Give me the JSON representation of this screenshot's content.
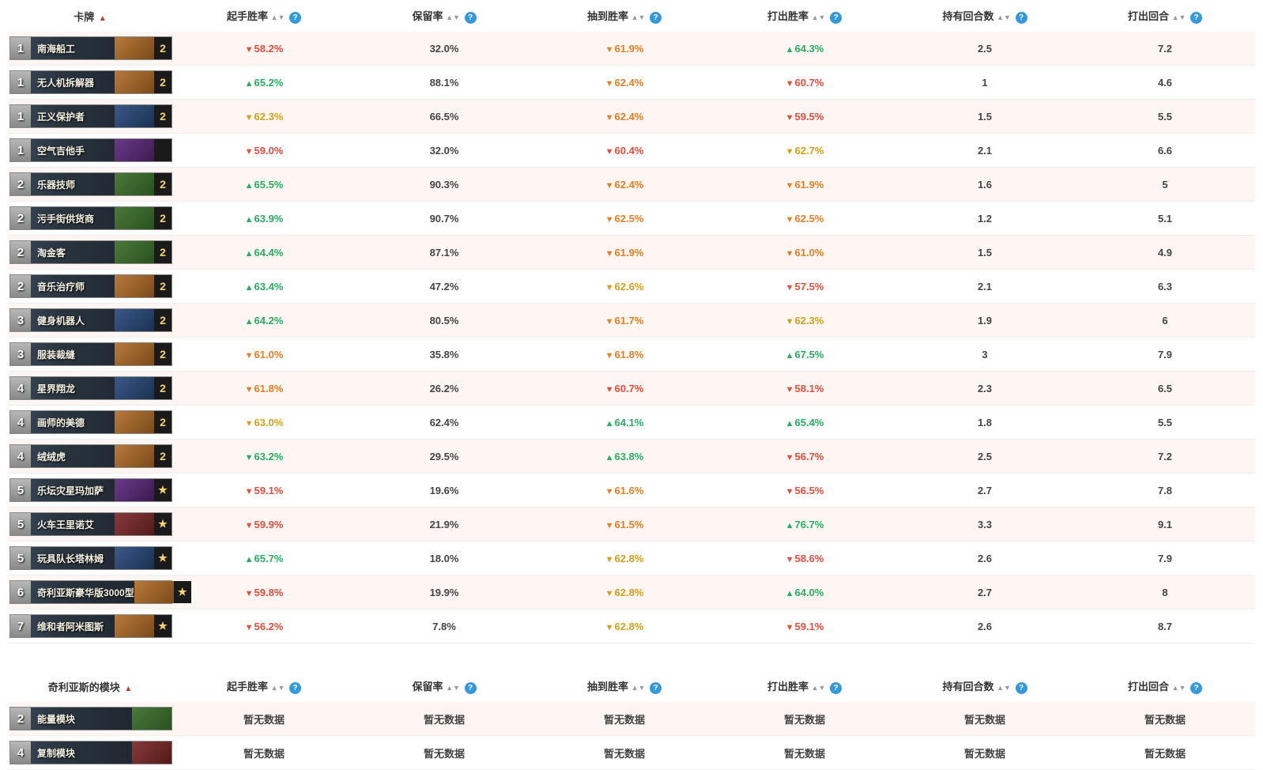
{
  "colors": {
    "red": "#e74c3c",
    "orange": "#e67e22",
    "yellow": "#d4a017",
    "green": "#27ae60",
    "plain": "#444444",
    "helpBg": "#3498db",
    "rowOdd": "#fdf6f3"
  },
  "mainTable": {
    "headers": {
      "card": "卡牌",
      "mulliganWR": "起手胜率",
      "keep": "保留率",
      "drawnWR": "抽到胜率",
      "playedWR": "打出胜率",
      "turnsHeld": "持有回合数",
      "turnPlayed": "打出回合"
    },
    "rows": [
      {
        "mana": "1",
        "name": "南海船工",
        "art": "orange",
        "count": "2",
        "ctype": "num",
        "mulligan": {
          "a": "▼",
          "v": "58.2%",
          "c": "red"
        },
        "keep": {
          "v": "32.0%",
          "c": "plain"
        },
        "drawn": {
          "a": "▼",
          "v": "61.9%",
          "c": "orange"
        },
        "played": {
          "a": "▲",
          "v": "64.3%",
          "c": "green"
        },
        "held": "2.5",
        "turn": "7.2"
      },
      {
        "mana": "1",
        "name": "无人机拆解器",
        "art": "orange",
        "count": "2",
        "ctype": "num",
        "mulligan": {
          "a": "▲",
          "v": "65.2%",
          "c": "green"
        },
        "keep": {
          "v": "88.1%",
          "c": "plain"
        },
        "drawn": {
          "a": "▼",
          "v": "62.4%",
          "c": "orange"
        },
        "played": {
          "a": "▼",
          "v": "60.7%",
          "c": "red"
        },
        "held": "1",
        "turn": "4.6"
      },
      {
        "mana": "1",
        "name": "正义保护者",
        "art": "blue",
        "count": "2",
        "ctype": "num",
        "mulligan": {
          "a": "▼",
          "v": "62.3%",
          "c": "yellow"
        },
        "keep": {
          "v": "66.5%",
          "c": "plain"
        },
        "drawn": {
          "a": "▼",
          "v": "62.4%",
          "c": "orange"
        },
        "played": {
          "a": "▼",
          "v": "59.5%",
          "c": "red"
        },
        "held": "1.5",
        "turn": "5.5"
      },
      {
        "mana": "1",
        "name": "空气吉他手",
        "art": "purple",
        "count": "",
        "ctype": "none",
        "mulligan": {
          "a": "▼",
          "v": "59.0%",
          "c": "red"
        },
        "keep": {
          "v": "32.0%",
          "c": "plain"
        },
        "drawn": {
          "a": "▼",
          "v": "60.4%",
          "c": "red"
        },
        "played": {
          "a": "▼",
          "v": "62.7%",
          "c": "yellow"
        },
        "held": "2.1",
        "turn": "6.6"
      },
      {
        "mana": "2",
        "name": "乐器技师",
        "art": "green",
        "count": "2",
        "ctype": "num",
        "mulligan": {
          "a": "▲",
          "v": "65.5%",
          "c": "green"
        },
        "keep": {
          "v": "90.3%",
          "c": "plain"
        },
        "drawn": {
          "a": "▼",
          "v": "62.4%",
          "c": "orange"
        },
        "played": {
          "a": "▼",
          "v": "61.9%",
          "c": "orange"
        },
        "held": "1.6",
        "turn": "5"
      },
      {
        "mana": "2",
        "name": "污手街供货商",
        "art": "green",
        "count": "2",
        "ctype": "num",
        "mulligan": {
          "a": "▲",
          "v": "63.9%",
          "c": "green"
        },
        "keep": {
          "v": "90.7%",
          "c": "plain"
        },
        "drawn": {
          "a": "▼",
          "v": "62.5%",
          "c": "orange"
        },
        "played": {
          "a": "▼",
          "v": "62.5%",
          "c": "orange"
        },
        "held": "1.2",
        "turn": "5.1"
      },
      {
        "mana": "2",
        "name": "淘金客",
        "art": "green",
        "count": "2",
        "ctype": "num",
        "mulligan": {
          "a": "▲",
          "v": "64.4%",
          "c": "green"
        },
        "keep": {
          "v": "87.1%",
          "c": "plain"
        },
        "drawn": {
          "a": "▼",
          "v": "61.9%",
          "c": "orange"
        },
        "played": {
          "a": "▼",
          "v": "61.0%",
          "c": "orange"
        },
        "held": "1.5",
        "turn": "4.9"
      },
      {
        "mana": "2",
        "name": "音乐治疗师",
        "art": "orange",
        "count": "2",
        "ctype": "num",
        "mulligan": {
          "a": "▲",
          "v": "63.4%",
          "c": "green"
        },
        "keep": {
          "v": "47.2%",
          "c": "plain"
        },
        "drawn": {
          "a": "▼",
          "v": "62.6%",
          "c": "yellow"
        },
        "played": {
          "a": "▼",
          "v": "57.5%",
          "c": "red"
        },
        "held": "2.1",
        "turn": "6.3"
      },
      {
        "mana": "3",
        "name": "健身机器人",
        "art": "blue",
        "count": "2",
        "ctype": "num",
        "mulligan": {
          "a": "▲",
          "v": "64.2%",
          "c": "green"
        },
        "keep": {
          "v": "80.5%",
          "c": "plain"
        },
        "drawn": {
          "a": "▼",
          "v": "61.7%",
          "c": "orange"
        },
        "played": {
          "a": "▼",
          "v": "62.3%",
          "c": "yellow"
        },
        "held": "1.9",
        "turn": "6"
      },
      {
        "mana": "3",
        "name": "服装裁缝",
        "art": "orange",
        "count": "2",
        "ctype": "num",
        "mulligan": {
          "a": "▼",
          "v": "61.0%",
          "c": "orange"
        },
        "keep": {
          "v": "35.8%",
          "c": "plain"
        },
        "drawn": {
          "a": "▼",
          "v": "61.8%",
          "c": "orange"
        },
        "played": {
          "a": "▲",
          "v": "67.5%",
          "c": "green"
        },
        "held": "3",
        "turn": "7.9"
      },
      {
        "mana": "4",
        "name": "星界翔龙",
        "art": "blue",
        "count": "2",
        "ctype": "num",
        "mulligan": {
          "a": "▼",
          "v": "61.8%",
          "c": "orange"
        },
        "keep": {
          "v": "26.2%",
          "c": "plain"
        },
        "drawn": {
          "a": "▼",
          "v": "60.7%",
          "c": "red"
        },
        "played": {
          "a": "▼",
          "v": "58.1%",
          "c": "red"
        },
        "held": "2.3",
        "turn": "6.5"
      },
      {
        "mana": "4",
        "name": "画师的美德",
        "art": "orange",
        "count": "2",
        "ctype": "num",
        "mulligan": {
          "a": "▼",
          "v": "63.0%",
          "c": "yellow"
        },
        "keep": {
          "v": "62.4%",
          "c": "plain"
        },
        "drawn": {
          "a": "▲",
          "v": "64.1%",
          "c": "green"
        },
        "played": {
          "a": "▲",
          "v": "65.4%",
          "c": "green"
        },
        "held": "1.8",
        "turn": "5.5"
      },
      {
        "mana": "4",
        "name": "绒绒虎",
        "art": "orange",
        "count": "2",
        "ctype": "num",
        "mulligan": {
          "a": "▼",
          "v": "63.2%",
          "c": "green"
        },
        "keep": {
          "v": "29.5%",
          "c": "plain"
        },
        "drawn": {
          "a": "▲",
          "v": "63.8%",
          "c": "green"
        },
        "played": {
          "a": "▼",
          "v": "56.7%",
          "c": "red"
        },
        "held": "2.5",
        "turn": "7.2"
      },
      {
        "mana": "5",
        "name": "乐坛灾星玛加萨",
        "art": "purple",
        "count": "★",
        "ctype": "star",
        "mulligan": {
          "a": "▼",
          "v": "59.1%",
          "c": "red"
        },
        "keep": {
          "v": "19.6%",
          "c": "plain"
        },
        "drawn": {
          "a": "▼",
          "v": "61.6%",
          "c": "orange"
        },
        "played": {
          "a": "▼",
          "v": "56.5%",
          "c": "red"
        },
        "held": "2.7",
        "turn": "7.8"
      },
      {
        "mana": "5",
        "name": "火车王里诺艾",
        "art": "red",
        "count": "★",
        "ctype": "star",
        "mulligan": {
          "a": "▼",
          "v": "59.9%",
          "c": "red"
        },
        "keep": {
          "v": "21.9%",
          "c": "plain"
        },
        "drawn": {
          "a": "▼",
          "v": "61.5%",
          "c": "orange"
        },
        "played": {
          "a": "▲",
          "v": "76.7%",
          "c": "green"
        },
        "held": "3.3",
        "turn": "9.1"
      },
      {
        "mana": "5",
        "name": "玩具队长塔林姆",
        "art": "blue",
        "count": "★",
        "ctype": "star",
        "mulligan": {
          "a": "▲",
          "v": "65.7%",
          "c": "green"
        },
        "keep": {
          "v": "18.0%",
          "c": "plain"
        },
        "drawn": {
          "a": "▼",
          "v": "62.8%",
          "c": "yellow"
        },
        "played": {
          "a": "▼",
          "v": "58.6%",
          "c": "red"
        },
        "held": "2.6",
        "turn": "7.9"
      },
      {
        "mana": "6",
        "name": "奇利亚斯豪华版3000型",
        "art": "orange",
        "count": "★",
        "ctype": "star",
        "mulligan": {
          "a": "▼",
          "v": "59.8%",
          "c": "red"
        },
        "keep": {
          "v": "19.9%",
          "c": "plain"
        },
        "drawn": {
          "a": "▼",
          "v": "62.8%",
          "c": "yellow"
        },
        "played": {
          "a": "▲",
          "v": "64.0%",
          "c": "green"
        },
        "held": "2.7",
        "turn": "8"
      },
      {
        "mana": "7",
        "name": "维和者阿米图斯",
        "art": "orange",
        "count": "★",
        "ctype": "star",
        "mulligan": {
          "a": "▼",
          "v": "56.2%",
          "c": "red"
        },
        "keep": {
          "v": "7.8%",
          "c": "plain"
        },
        "drawn": {
          "a": "▼",
          "v": "62.8%",
          "c": "yellow"
        },
        "played": {
          "a": "▼",
          "v": "59.1%",
          "c": "red"
        },
        "held": "2.6",
        "turn": "8.7"
      }
    ]
  },
  "secondTable": {
    "headers": {
      "card": "奇利亚斯的模块",
      "mulliganWR": "起手胜率",
      "keep": "保留率",
      "drawnWR": "抽到胜率",
      "playedWR": "打出胜率",
      "turnsHeld": "持有回合数",
      "turnPlayed": "打出回合"
    },
    "noData": "暂无数据",
    "rows": [
      {
        "mana": "2",
        "name": "能量模块",
        "art": "green"
      },
      {
        "mana": "4",
        "name": "复制模块",
        "art": "red"
      }
    ]
  }
}
